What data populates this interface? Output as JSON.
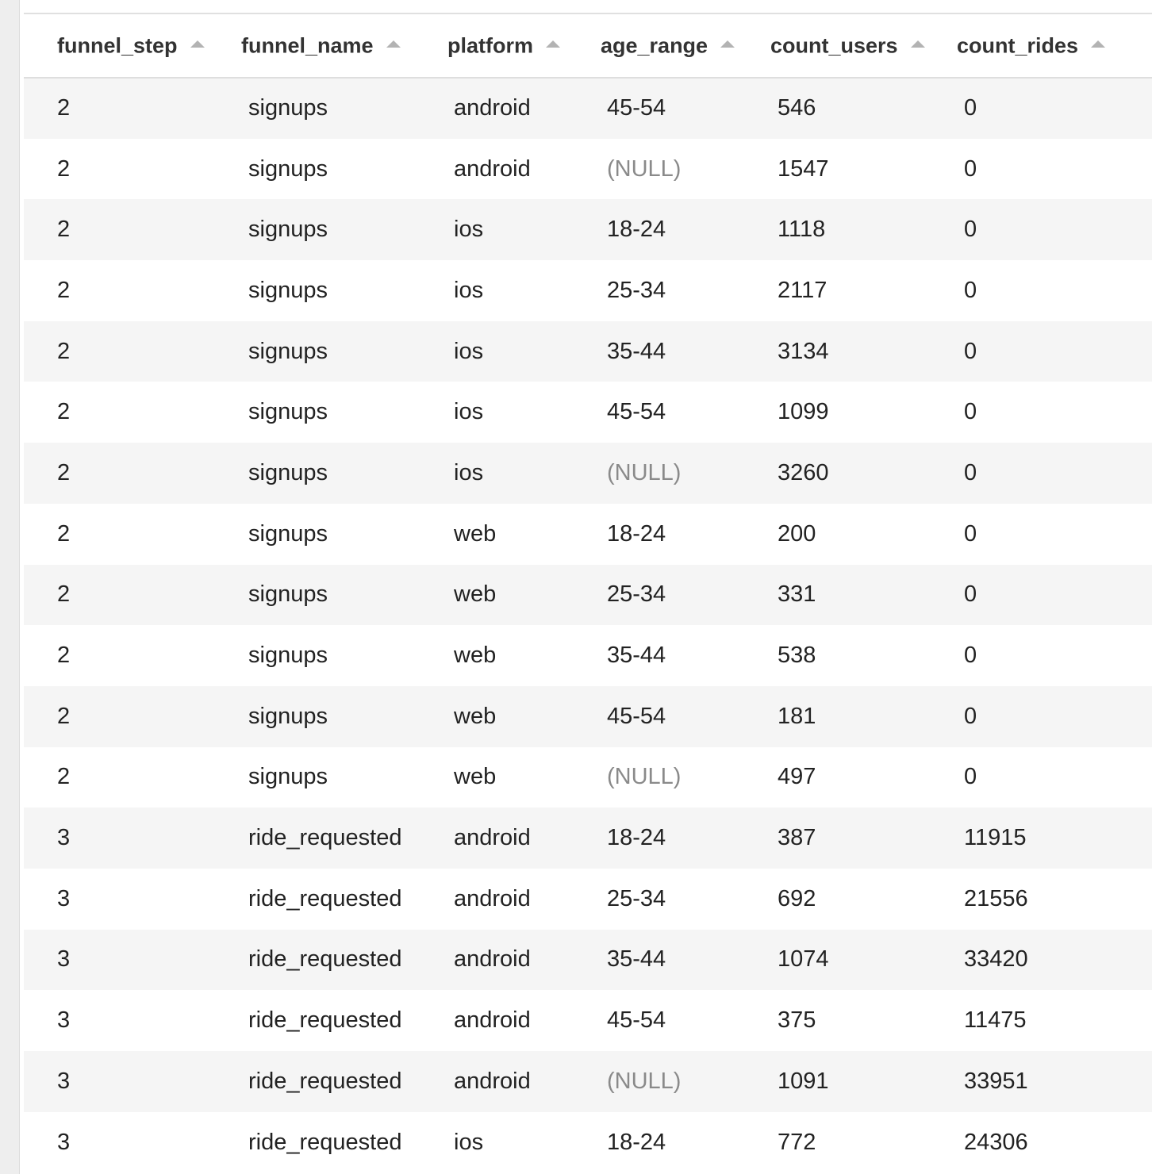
{
  "table": {
    "columns": [
      {
        "label": "funnel_step",
        "sort": "ascending"
      },
      {
        "label": "funnel_name",
        "sort": "ascending"
      },
      {
        "label": "platform",
        "sort": "ascending"
      },
      {
        "label": "age_range",
        "sort": "ascending"
      },
      {
        "label": "count_users",
        "sort": "ascending"
      },
      {
        "label": "count_rides",
        "sort": "ascending"
      }
    ],
    "null_display": "(NULL)",
    "rows": [
      [
        "2",
        "signups",
        "android",
        "45-54",
        "546",
        "0"
      ],
      [
        "2",
        "signups",
        "android",
        "(NULL)",
        "1547",
        "0"
      ],
      [
        "2",
        "signups",
        "ios",
        "18-24",
        "1118",
        "0"
      ],
      [
        "2",
        "signups",
        "ios",
        "25-34",
        "2117",
        "0"
      ],
      [
        "2",
        "signups",
        "ios",
        "35-44",
        "3134",
        "0"
      ],
      [
        "2",
        "signups",
        "ios",
        "45-54",
        "1099",
        "0"
      ],
      [
        "2",
        "signups",
        "ios",
        "(NULL)",
        "3260",
        "0"
      ],
      [
        "2",
        "signups",
        "web",
        "18-24",
        "200",
        "0"
      ],
      [
        "2",
        "signups",
        "web",
        "25-34",
        "331",
        "0"
      ],
      [
        "2",
        "signups",
        "web",
        "35-44",
        "538",
        "0"
      ],
      [
        "2",
        "signups",
        "web",
        "45-54",
        "181",
        "0"
      ],
      [
        "2",
        "signups",
        "web",
        "(NULL)",
        "497",
        "0"
      ],
      [
        "3",
        "ride_requested",
        "android",
        "18-24",
        "387",
        "11915"
      ],
      [
        "3",
        "ride_requested",
        "android",
        "25-34",
        "692",
        "21556"
      ],
      [
        "3",
        "ride_requested",
        "android",
        "35-44",
        "1074",
        "33420"
      ],
      [
        "3",
        "ride_requested",
        "android",
        "45-54",
        "375",
        "11475"
      ],
      [
        "3",
        "ride_requested",
        "android",
        "(NULL)",
        "1091",
        "33951"
      ],
      [
        "3",
        "ride_requested",
        "ios",
        "18-24",
        "772",
        "24306"
      ]
    ]
  },
  "colors": {
    "header_text": "#333333",
    "cell_text": "#222222",
    "null_text": "#8a8a8a",
    "row_stripe": "#f5f5f5",
    "sort_arrow": "#b3b3b3"
  }
}
